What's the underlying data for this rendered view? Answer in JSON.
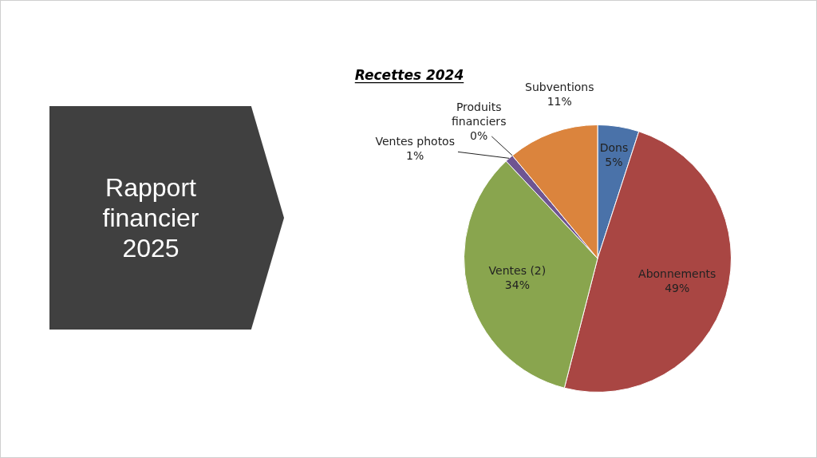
{
  "chart_data": {
    "type": "pie",
    "title": "Recettes 2024",
    "categories": [
      "Dons",
      "Abonnements",
      "Ventes (2)",
      "Ventes photos",
      "Produits financiers",
      "Subventions"
    ],
    "values": [
      5,
      49,
      34,
      1,
      0,
      11
    ],
    "colors": [
      "#4a72a9",
      "#a94643",
      "#89a54e",
      "#6f5592",
      "#3f97b1",
      "#db843d"
    ],
    "value_labels": [
      "5%",
      "49%",
      "34%",
      "1%",
      "0%",
      "11%"
    ],
    "legend": false,
    "annotations": [
      "Rapport financier 2025"
    ]
  }
}
